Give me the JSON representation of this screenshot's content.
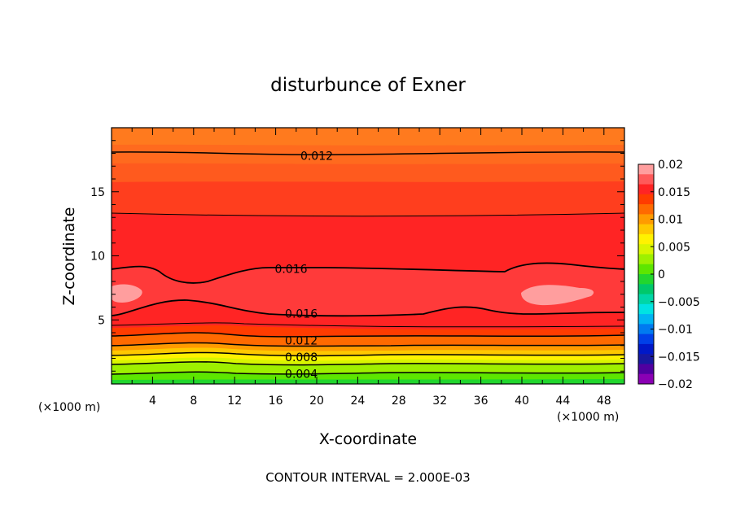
{
  "chart_data": {
    "type": "heatmap",
    "title": "disturbunce of Exner",
    "xlabel": "X-coordinate",
    "ylabel": "Z-coordinate",
    "x_unit": "(×1000 m)",
    "xlim": [
      0,
      50
    ],
    "ylim": [
      0,
      20
    ],
    "x_ticks": [
      "4",
      "8",
      "12",
      "16",
      "20",
      "24",
      "28",
      "32",
      "36",
      "40",
      "44",
      "48"
    ],
    "y_ticks": [
      "5",
      "10",
      "15"
    ],
    "colorbar": {
      "ticks": [
        "0.02",
        "0.015",
        "0.01",
        "0.005",
        "0",
        "-0.005",
        "-0.01",
        "-0.015",
        "-0.02"
      ],
      "colors": [
        "#ff9e9e",
        "#ff5a5a",
        "#ff2424",
        "#ff3c00",
        "#ff6a00",
        "#ff9b00",
        "#ffc800",
        "#fff200",
        "#d8f500",
        "#9ef000",
        "#5de600",
        "#22d62e",
        "#00c86a",
        "#00d6a6",
        "#00e3e3",
        "#00b4f3",
        "#007af0",
        "#0040e8",
        "#0018c8",
        "#1818a0",
        "#5000a0",
        "#8a00b4"
      ],
      "min": -0.02,
      "max": 0.02,
      "interval": 0.002
    },
    "contour_labels": [
      {
        "text": "0.012",
        "x": 20,
        "z": 17.8
      },
      {
        "text": "0.016",
        "x": 17.5,
        "z": 9.0
      },
      {
        "text": "0.016",
        "x": 18.5,
        "z": 5.5
      },
      {
        "text": "0.012",
        "x": 18.5,
        "z": 3.4
      },
      {
        "text": "0.008",
        "x": 18.5,
        "z": 2.1
      },
      {
        "text": "0.004",
        "x": 18.5,
        "z": 0.8
      }
    ],
    "footer": "CONTOUR INTERVAL = 2.000E-03"
  }
}
